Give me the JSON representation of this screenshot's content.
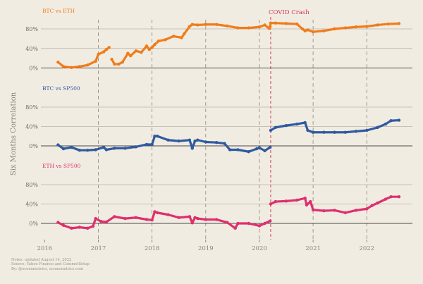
{
  "chart_data": {
    "type": "scatter",
    "ylabel": "Six Months Correlation",
    "event": {
      "label": "COVID Crash",
      "x": 2020.21,
      "color": "#d13b5b"
    },
    "x_ticks": [
      2016,
      2017,
      2018,
      2019,
      2020,
      2021,
      2022
    ],
    "x_tick_labels": [
      "2016",
      "2017",
      "2018",
      "2019",
      "2020",
      "2021",
      "2022"
    ],
    "xlim": [
      2015.93,
      2022.85
    ],
    "vertical_dashed_x": [
      2017,
      2018,
      2019,
      2020,
      2021,
      2022
    ],
    "panels": [
      {
        "title": "BTC vs ETH",
        "color": "#f07c1a",
        "ylim": [
          -0.04,
          0.95
        ],
        "y_ticks": [
          0,
          0.4,
          0.8
        ],
        "y_tick_labels": [
          "0%",
          "40%",
          "80%"
        ],
        "x": [
          2016.25,
          2016.35,
          2016.5,
          2016.65,
          2016.8,
          2016.95,
          2017.0,
          2017.1,
          2017.15,
          2017.2,
          2017.25,
          2017.3,
          2017.38,
          2017.45,
          2017.55,
          2017.6,
          2017.7,
          2017.8,
          2017.9,
          2017.95,
          2018.0,
          2018.05,
          2018.12,
          2018.25,
          2018.4,
          2018.55,
          2018.6,
          2018.7,
          2018.75,
          2018.85,
          2019.0,
          2019.2,
          2019.4,
          2019.6,
          2019.8,
          2020.0,
          2020.1,
          2020.18,
          2020.2,
          2020.21,
          2020.3,
          2020.5,
          2020.7,
          2020.8,
          2020.85,
          2020.9,
          2021.0,
          2021.2,
          2021.4,
          2021.6,
          2021.8,
          2022.0,
          2022.2,
          2022.4,
          2022.6
        ],
        "y": [
          0.12,
          0.03,
          0.01,
          0.03,
          0.06,
          0.14,
          0.28,
          0.33,
          0.38,
          0.42,
          0.18,
          0.08,
          0.08,
          0.12,
          0.3,
          0.25,
          0.35,
          0.32,
          0.45,
          0.38,
          0.42,
          0.48,
          0.55,
          0.58,
          0.65,
          0.62,
          0.7,
          0.85,
          0.89,
          0.88,
          0.89,
          0.89,
          0.86,
          0.82,
          0.82,
          0.84,
          0.88,
          0.81,
          0.85,
          0.92,
          0.92,
          0.91,
          0.9,
          0.8,
          0.76,
          0.78,
          0.74,
          0.76,
          0.8,
          0.82,
          0.84,
          0.85,
          0.88,
          0.9,
          0.91
        ]
      },
      {
        "title": "BTC vs SP500",
        "color": "#2f5aa0",
        "ylim": [
          -0.26,
          0.95
        ],
        "y_ticks": [
          0,
          0.4,
          0.8
        ],
        "y_tick_labels": [
          "0%",
          "40%",
          "80%"
        ],
        "x": [
          2016.25,
          2016.35,
          2016.5,
          2016.65,
          2016.8,
          2016.95,
          2017.1,
          2017.15,
          2017.3,
          2017.5,
          2017.7,
          2017.9,
          2018.0,
          2018.05,
          2018.1,
          2018.3,
          2018.5,
          2018.7,
          2018.75,
          2018.8,
          2018.85,
          2019.0,
          2019.2,
          2019.35,
          2019.45,
          2019.6,
          2019.8,
          2019.95,
          2020.0,
          2020.1,
          2020.2,
          2020.21,
          2020.3,
          2020.5,
          2020.7,
          2020.85,
          2020.9,
          2021.0,
          2021.2,
          2021.4,
          2021.6,
          2021.8,
          2022.0,
          2022.2,
          2022.35,
          2022.45,
          2022.6
        ],
        "y": [
          0.02,
          -0.06,
          -0.03,
          -0.09,
          -0.09,
          -0.08,
          -0.03,
          -0.08,
          -0.05,
          -0.05,
          -0.02,
          0.03,
          0.03,
          0.2,
          0.2,
          0.12,
          0.1,
          0.12,
          -0.05,
          0.1,
          0.12,
          0.08,
          0.07,
          0.05,
          -0.08,
          -0.08,
          -0.12,
          -0.06,
          -0.04,
          -0.1,
          -0.03,
          0.32,
          0.38,
          0.42,
          0.45,
          0.48,
          0.32,
          0.28,
          0.28,
          0.28,
          0.28,
          0.3,
          0.32,
          0.38,
          0.45,
          0.52,
          0.53
        ]
      },
      {
        "title": "ETH vs SP500",
        "color": "#de2f6e",
        "ylim": [
          -0.26,
          0.95
        ],
        "y_ticks": [
          0,
          0.4,
          0.8
        ],
        "y_tick_labels": [
          "0%",
          "40%",
          "80%"
        ],
        "x": [
          2016.25,
          2016.35,
          2016.5,
          2016.65,
          2016.8,
          2016.9,
          2016.95,
          2017.05,
          2017.15,
          2017.3,
          2017.5,
          2017.7,
          2017.9,
          2018.0,
          2018.05,
          2018.1,
          2018.3,
          2018.5,
          2018.7,
          2018.75,
          2018.8,
          2018.85,
          2019.0,
          2019.2,
          2019.4,
          2019.55,
          2019.6,
          2019.8,
          2020.0,
          2020.1,
          2020.2,
          2020.21,
          2020.3,
          2020.5,
          2020.7,
          2020.85,
          2020.88,
          2020.95,
          2021.0,
          2021.2,
          2021.4,
          2021.6,
          2021.8,
          2022.0,
          2022.1,
          2022.2,
          2022.35,
          2022.45,
          2022.6
        ],
        "y": [
          0.02,
          -0.04,
          -0.1,
          -0.08,
          -0.1,
          -0.06,
          0.1,
          0.04,
          0.03,
          0.14,
          0.1,
          0.12,
          0.08,
          0.07,
          0.24,
          0.22,
          0.18,
          0.12,
          0.14,
          0.01,
          0.12,
          0.1,
          0.08,
          0.08,
          0.02,
          -0.1,
          0.0,
          0.0,
          -0.05,
          0.0,
          0.05,
          0.4,
          0.45,
          0.46,
          0.48,
          0.52,
          0.38,
          0.45,
          0.28,
          0.26,
          0.27,
          0.22,
          0.27,
          0.3,
          0.37,
          0.42,
          0.5,
          0.55,
          0.55
        ]
      }
    ]
  },
  "notes": [
    "Notes: updated August 14, 2022",
    "Source: Yahoo Finance and CoinmetSetup",
    "By: @econometrics, econometrics.com"
  ]
}
